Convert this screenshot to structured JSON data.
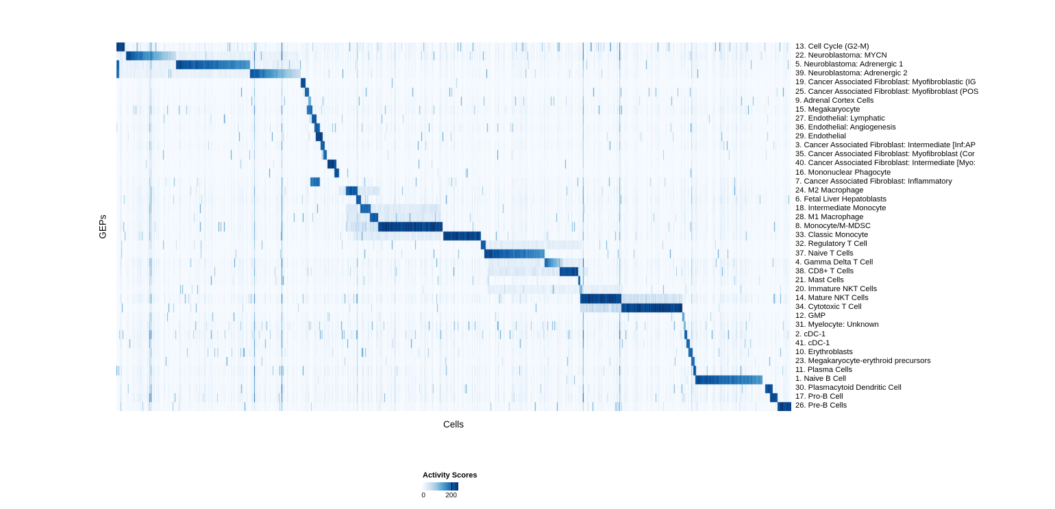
{
  "chart_data": {
    "type": "heatmap",
    "title": "",
    "xlabel": "Cells",
    "ylabel": "GEPs",
    "legend_title": "Activity Scores",
    "legend_ticks": [
      "0",
      "200"
    ],
    "value_range": [
      0,
      200
    ],
    "legend_position": "bottom-left",
    "colormap": "Blues",
    "colormap_stops": [
      "#f7fbff",
      "#deebf7",
      "#c6dbef",
      "#9ecae1",
      "#6baed6",
      "#4292c6",
      "#2171b5",
      "#08519c",
      "#08306b"
    ],
    "background_color": "#f7fbff",
    "description": "GEP activity scores per cell; rows are gene expression programs, columns are cells ordered by population; each row's 'block' gives the fraction range of cells (0-1 across the x axis) with high activity and 'intensity' the peak normalized score.",
    "rows": [
      {
        "label": "13. Cell Cycle (G2-M)",
        "block": [
          0.0,
          0.012
        ],
        "intensity": 1.0,
        "speckle": 3
      },
      {
        "label": "22. Neuroblastoma: MYCN",
        "block": [
          0.014,
          0.088
        ],
        "intensity": 1.0,
        "fade": "right",
        "halo": [
          0.0,
          0.27,
          0.1
        ]
      },
      {
        "label": "5. Neuroblastoma: Adrenergic 1",
        "block": [
          0.088,
          0.198
        ],
        "intensity": 1.0,
        "fade": "slight",
        "halo": [
          0.0,
          0.27,
          0.1
        ],
        "halo2": [
          0.0,
          0.004,
          0.85
        ]
      },
      {
        "label": "39. Neuroblastoma: Adrenergic 2",
        "block": [
          0.198,
          0.273
        ],
        "intensity": 0.95,
        "fade": "right",
        "halo": [
          0.0,
          0.27,
          0.1
        ],
        "halo2": [
          0.0,
          0.004,
          0.8
        ]
      },
      {
        "label": "19. Cancer Associated Fibroblast: Myofibroblastic (IG",
        "block": [
          0.273,
          0.28
        ],
        "intensity": 0.95
      },
      {
        "label": "25. Cancer Associated Fibroblast: Myofibroblast (POS",
        "block": [
          0.279,
          0.285
        ],
        "intensity": 0.9
      },
      {
        "label": "9. Adrenal Cortex Cells",
        "block": [
          0.284,
          0.288
        ],
        "intensity": 0.55
      },
      {
        "label": "15. Megakaryocyte",
        "block": [
          0.282,
          0.29
        ],
        "intensity": 0.85,
        "speckle": 1.5
      },
      {
        "label": "27. Endothelial: Lymphatic",
        "block": [
          0.289,
          0.296
        ],
        "intensity": 0.9
      },
      {
        "label": "36. Endothelial: Angiogenesis",
        "block": [
          0.293,
          0.301
        ],
        "intensity": 0.9
      },
      {
        "label": "29. Endothelial",
        "block": [
          0.295,
          0.305
        ],
        "intensity": 1.0
      },
      {
        "label": "3. Cancer Associated Fibroblast: Intermediate [Inf:AP",
        "block": [
          0.302,
          0.308
        ],
        "intensity": 0.9
      },
      {
        "label": "35. Cancer Associated Fibroblast: Myofibroblast (Cor",
        "block": [
          0.306,
          0.311
        ],
        "intensity": 0.85
      },
      {
        "label": "40. Cancer Associated Fibroblast: Intermediate [Myo:",
        "block": [
          0.312,
          0.326
        ],
        "intensity": 1.0
      },
      {
        "label": "16. Mononuclear Phagocyte",
        "block": [
          0.323,
          0.33
        ],
        "intensity": 0.9
      },
      {
        "label": "7. Cancer Associated Fibroblast: Inflammatory",
        "block": [
          0.287,
          0.301
        ],
        "intensity": 0.8
      },
      {
        "label": "24. M2 Macrophage",
        "block": [
          0.34,
          0.357
        ],
        "intensity": 0.9,
        "halo": [
          0.33,
          0.39,
          0.2
        ]
      },
      {
        "label": "6. Fetal Liver Hepatoblasts",
        "block": [
          0.355,
          0.362
        ],
        "intensity": 0.9
      },
      {
        "label": "18. Intermediate Monocyte",
        "block": [
          0.361,
          0.377
        ],
        "intensity": 0.85,
        "halo": [
          0.34,
          0.48,
          0.18
        ]
      },
      {
        "label": "28. M1 Macrophage",
        "block": [
          0.376,
          0.388
        ],
        "intensity": 0.9,
        "halo": [
          0.34,
          0.48,
          0.18
        ]
      },
      {
        "label": "8. Monocyte/M-MDSC",
        "block": [
          0.388,
          0.483
        ],
        "intensity": 1.0,
        "halo": [
          0.34,
          0.39,
          0.3
        ]
      },
      {
        "label": "33. Classic Monocyte",
        "block": [
          0.484,
          0.54
        ],
        "intensity": 1.0,
        "halo": [
          0.35,
          0.48,
          0.15
        ]
      },
      {
        "label": "32. Regulatory T Cell",
        "block": [
          0.54,
          0.547
        ],
        "intensity": 0.9,
        "halo": [
          0.54,
          0.69,
          0.14
        ]
      },
      {
        "label": "37. Naive T Cells",
        "block": [
          0.545,
          0.635
        ],
        "intensity": 1.0,
        "fade": "slight"
      },
      {
        "label": "4. Gamma Delta T Cell",
        "block": [
          0.635,
          0.662
        ],
        "intensity": 0.9,
        "fade": "right",
        "halo": [
          0.55,
          0.69,
          0.15
        ]
      },
      {
        "label": "38. CD8+ T Cells",
        "block": [
          0.657,
          0.684
        ],
        "intensity": 0.95,
        "halo": [
          0.55,
          0.7,
          0.18
        ]
      },
      {
        "label": "21. Mast Cells",
        "block": [
          0.684,
          0.688
        ],
        "intensity": 0.85
      },
      {
        "label": "20. Immature NKT Cells",
        "block": [
          0.686,
          0.691
        ],
        "intensity": 0.5,
        "halo": [
          0.55,
          0.75,
          0.12
        ]
      },
      {
        "label": "14. Mature NKT Cells",
        "block": [
          0.688,
          0.748
        ],
        "intensity": 1.0,
        "halo": [
          0.69,
          0.84,
          0.28
        ]
      },
      {
        "label": "34. Cytotoxic T Cell",
        "block": [
          0.748,
          0.839
        ],
        "intensity": 1.0,
        "halo": [
          0.688,
          0.75,
          0.32
        ]
      },
      {
        "label": "12. GMP",
        "block": [
          0.839,
          0.842
        ],
        "intensity": 0.6
      },
      {
        "label": "31. Myelocyte: Unknown",
        "block": [
          0.841,
          0.844
        ],
        "intensity": 0.5,
        "speckle": 2.5
      },
      {
        "label": "2. cDC-1",
        "block": [
          0.842,
          0.846
        ],
        "intensity": 0.9,
        "speckle": 2
      },
      {
        "label": "41. cDC-1",
        "block": [
          0.845,
          0.85
        ],
        "intensity": 0.9
      },
      {
        "label": "10. Erythroblasts",
        "block": [
          0.848,
          0.854
        ],
        "intensity": 0.9,
        "speckle": 1.5
      },
      {
        "label": "23. Megakaryocyte-erythroid precursors",
        "block": [
          0.852,
          0.857
        ],
        "intensity": 0.85,
        "speckle": 1.5
      },
      {
        "label": "11. Plasma Cells",
        "block": [
          0.855,
          0.859
        ],
        "intensity": 0.9
      },
      {
        "label": "1. Naive B Cell",
        "block": [
          0.858,
          0.958
        ],
        "intensity": 1.0,
        "fade": "slight"
      },
      {
        "label": "30. Plasmacytoid Dendritic Cell",
        "block": [
          0.962,
          0.973
        ],
        "intensity": 0.95
      },
      {
        "label": "17. Pro-B Cell",
        "block": [
          0.969,
          0.98
        ],
        "intensity": 0.95
      },
      {
        "label": "26. Pre-B Cells",
        "block": [
          0.98,
          1.0
        ],
        "intensity": 1.0,
        "speckle": 2
      }
    ]
  }
}
